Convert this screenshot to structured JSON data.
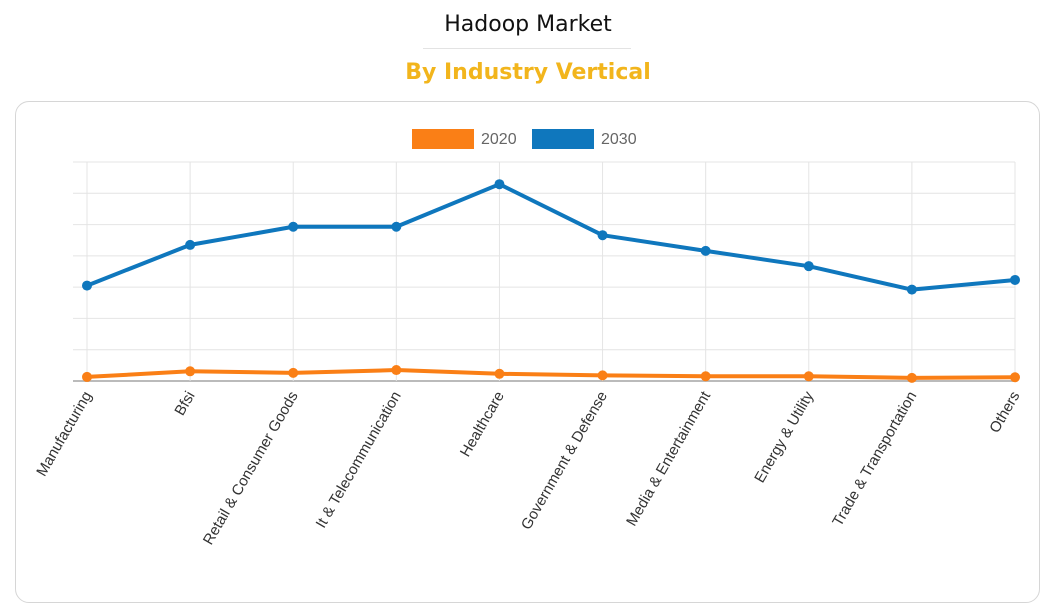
{
  "header": {
    "title": "Hadoop Market",
    "subtitle": "By Industry Vertical"
  },
  "chart_data": {
    "type": "line",
    "title": "",
    "xlabel": "",
    "ylabel": "",
    "y_units": "gridline units (no y-axis labels printed)",
    "ylim": [
      0,
      7
    ],
    "grid": true,
    "legend_position": "top",
    "categories": [
      "Manufacturing",
      "Bfsi",
      "Retail & Consumer Goods",
      "It & Telecommunication",
      "Healthcare",
      "Government & Defense",
      "Media & Entertainment",
      "Energy & Utility",
      "Trade & Transportation",
      "Others"
    ],
    "series": [
      {
        "name": "2020",
        "color": "#fa7f16",
        "values": [
          0.13,
          0.31,
          0.26,
          0.35,
          0.23,
          0.18,
          0.15,
          0.15,
          0.1,
          0.12
        ]
      },
      {
        "name": "2030",
        "color": "#0f77bd",
        "values": [
          3.05,
          4.35,
          4.93,
          4.93,
          6.29,
          4.66,
          4.16,
          3.67,
          2.92,
          3.23
        ]
      }
    ]
  }
}
